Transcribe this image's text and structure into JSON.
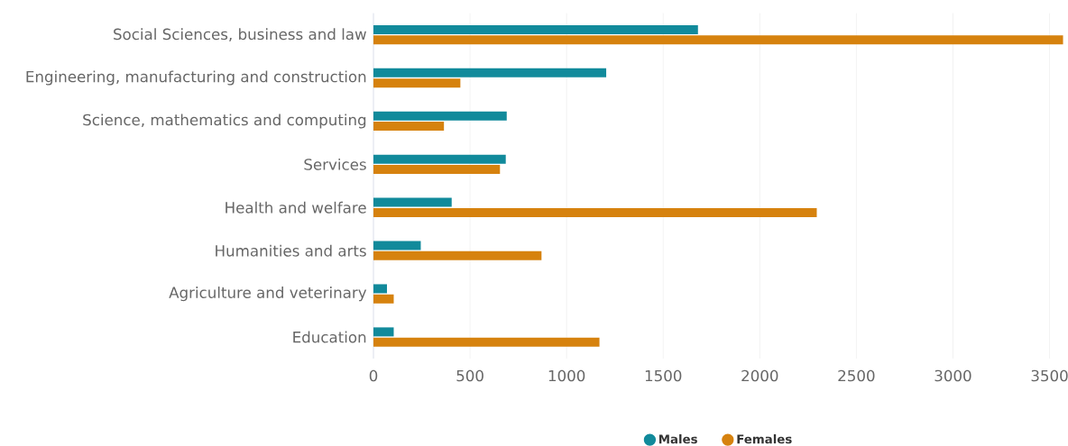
{
  "chart_data": {
    "type": "bar",
    "orientation": "horizontal",
    "categories": [
      "Social Sciences, business and law",
      "Engineering, manufacturing and construction",
      "Science, mathematics and computing",
      "Services",
      "Health and welfare",
      "Humanities and arts",
      "Agriculture and veterinary",
      "Education"
    ],
    "series": [
      {
        "name": "Males",
        "color": "#118a9b",
        "values": [
          1680,
          1205,
          690,
          685,
          405,
          245,
          70,
          105
        ]
      },
      {
        "name": "Females",
        "color": "#d6820e",
        "values": [
          3570,
          450,
          365,
          655,
          2295,
          870,
          105,
          1170
        ]
      }
    ],
    "xlim": [
      0,
      3580
    ],
    "xticks": [
      0,
      500,
      1000,
      1500,
      2000,
      2500,
      3000,
      3500
    ],
    "grid": "x",
    "legend": "bottom"
  }
}
